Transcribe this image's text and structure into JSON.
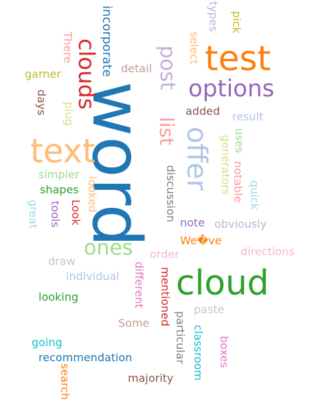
{
  "palette": {
    "blue": "#1f77b4",
    "orange": "#ff7f0e",
    "green": "#2ca02c",
    "red": "#d62728",
    "purple": "#9467bd",
    "brown": "#8c564b",
    "pink": "#e377c2",
    "gray": "#7f7f7f",
    "olive": "#bcbd22",
    "cyan": "#17becf",
    "light_blue": "#aec7e8",
    "light_orange": "#ffbb78",
    "light_green": "#98df8a",
    "light_red": "#ff9896",
    "light_purple": "#c5b0d5",
    "light_brown": "#c49c94",
    "light_pink": "#f7b6d2",
    "light_gray": "#c7c7c7",
    "light_olive": "#dbdb8d",
    "light_cyan": "#9edae5"
  },
  "words": [
    {
      "text": "word",
      "color": "#1f77b4",
      "orientation": "vertical"
    },
    {
      "text": "test",
      "color": "#ff7f0e",
      "orientation": "horizontal"
    },
    {
      "text": "cloud",
      "color": "#2ca02c",
      "orientation": "horizontal"
    },
    {
      "text": "text",
      "color": "#ffbb78",
      "orientation": "horizontal"
    },
    {
      "text": "offer",
      "color": "#aec7e8",
      "orientation": "vertical"
    },
    {
      "text": "options",
      "color": "#9467bd",
      "orientation": "horizontal"
    },
    {
      "text": "clouds",
      "color": "#d62728",
      "orientation": "vertical"
    },
    {
      "text": "ones",
      "color": "#98df8a",
      "orientation": "horizontal"
    },
    {
      "text": "post",
      "color": "#c5b0d5",
      "orientation": "vertical"
    },
    {
      "text": "list",
      "color": "#ff9896",
      "orientation": "vertical"
    },
    {
      "text": "incorporate",
      "color": "#1f77b4",
      "orientation": "vertical"
    },
    {
      "text": "There",
      "color": "#ff9896",
      "orientation": "vertical"
    },
    {
      "text": "types",
      "color": "#c5b0d5",
      "orientation": "vertical"
    },
    {
      "text": "pick",
      "color": "#bcbd22",
      "orientation": "vertical"
    },
    {
      "text": "select",
      "color": "#ffbb78",
      "orientation": "vertical"
    },
    {
      "text": "detail",
      "color": "#c49c94",
      "orientation": "horizontal"
    },
    {
      "text": "garner",
      "color": "#bcbd22",
      "orientation": "horizontal"
    },
    {
      "text": "days",
      "color": "#8c564b",
      "orientation": "vertical"
    },
    {
      "text": "plug",
      "color": "#dbdb8d",
      "orientation": "vertical"
    },
    {
      "text": "added",
      "color": "#8c564b",
      "orientation": "horizontal"
    },
    {
      "text": "result",
      "color": "#aec7e8",
      "orientation": "horizontal"
    },
    {
      "text": "uses",
      "color": "#98df8a",
      "orientation": "vertical"
    },
    {
      "text": "generators",
      "color": "#dbdb8d",
      "orientation": "vertical"
    },
    {
      "text": "notable",
      "color": "#ff9896",
      "orientation": "vertical"
    },
    {
      "text": "quick",
      "color": "#9edae5",
      "orientation": "vertical"
    },
    {
      "text": "simpler",
      "color": "#98df8a",
      "orientation": "horizontal"
    },
    {
      "text": "shapes",
      "color": "#2ca02c",
      "orientation": "horizontal"
    },
    {
      "text": "looked",
      "color": "#ffbb78",
      "orientation": "vertical"
    },
    {
      "text": "discussion",
      "color": "#7f7f7f",
      "orientation": "vertical"
    },
    {
      "text": "great",
      "color": "#9edae5",
      "orientation": "vertical"
    },
    {
      "text": "tools",
      "color": "#9467bd",
      "orientation": "vertical"
    },
    {
      "text": "Look",
      "color": "#d62728",
      "orientation": "vertical"
    },
    {
      "text": "note",
      "color": "#9467bd",
      "orientation": "horizontal"
    },
    {
      "text": "obviously",
      "color": "#c5b0d5",
      "orientation": "horizontal"
    },
    {
      "text": "We�ve",
      "color": "#ff7f0e",
      "orientation": "horizontal"
    },
    {
      "text": "order",
      "color": "#f7b6d2",
      "orientation": "horizontal"
    },
    {
      "text": "directions",
      "color": "#f7b6d2",
      "orientation": "horizontal"
    },
    {
      "text": "draw",
      "color": "#c7c7c7",
      "orientation": "horizontal"
    },
    {
      "text": "different",
      "color": "#e377c2",
      "orientation": "vertical"
    },
    {
      "text": "individual",
      "color": "#aec7e8",
      "orientation": "horizontal"
    },
    {
      "text": "mentioned",
      "color": "#d62728",
      "orientation": "vertical"
    },
    {
      "text": "looking",
      "color": "#2ca02c",
      "orientation": "horizontal"
    },
    {
      "text": "paste",
      "color": "#c7c7c7",
      "orientation": "horizontal"
    },
    {
      "text": "Some",
      "color": "#c49c94",
      "orientation": "horizontal"
    },
    {
      "text": "particular",
      "color": "#7f7f7f",
      "orientation": "vertical"
    },
    {
      "text": "classroom",
      "color": "#17becf",
      "orientation": "vertical"
    },
    {
      "text": "boxes",
      "color": "#e377c2",
      "orientation": "vertical"
    },
    {
      "text": "going",
      "color": "#17becf",
      "orientation": "horizontal"
    },
    {
      "text": "recommendation",
      "color": "#1f77b4",
      "orientation": "horizontal"
    },
    {
      "text": "search",
      "color": "#ff7f0e",
      "orientation": "vertical"
    },
    {
      "text": "majority",
      "color": "#8c564b",
      "orientation": "horizontal"
    }
  ]
}
